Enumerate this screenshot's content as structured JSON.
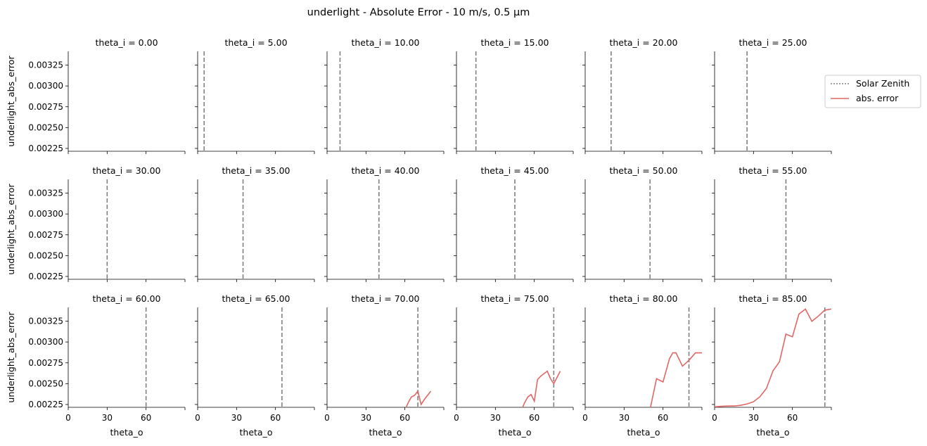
{
  "chart_data": {
    "type": "line",
    "title": "underlight - Absolute Error - 10 m/s, 0.5 µm",
    "xlabel": "theta_o",
    "ylabel": "underlight_abs_error",
    "xlim": [
      0,
      90
    ],
    "ylim": [
      0.002216,
      0.003415
    ],
    "xticks": [
      "0",
      "30",
      "60"
    ],
    "yticks": [
      "0.00225",
      "0.00250",
      "0.00275",
      "0.00300",
      "0.00325"
    ],
    "xtick_values": [
      0,
      30,
      60
    ],
    "ytick_values": [
      0.00225,
      0.0025,
      0.00275,
      0.003,
      0.00325
    ],
    "grid": false,
    "legend": {
      "placement": "right",
      "entries": [
        {
          "label": "Solar Zenith",
          "color": "#808080",
          "style": "dotted"
        },
        {
          "label": "abs. error",
          "color": "#e06666",
          "style": "solid"
        }
      ]
    },
    "panels": [
      {
        "title": "theta_i = 0.00",
        "theta_i": 0,
        "series": []
      },
      {
        "title": "theta_i = 5.00",
        "theta_i": 5,
        "series": []
      },
      {
        "title": "theta_i = 10.00",
        "theta_i": 10,
        "series": []
      },
      {
        "title": "theta_i = 15.00",
        "theta_i": 15,
        "series": []
      },
      {
        "title": "theta_i = 20.00",
        "theta_i": 20,
        "series": []
      },
      {
        "title": "theta_i = 25.00",
        "theta_i": 25,
        "series": []
      },
      {
        "title": "theta_i = 30.00",
        "theta_i": 30,
        "series": []
      },
      {
        "title": "theta_i = 35.00",
        "theta_i": 35,
        "series": []
      },
      {
        "title": "theta_i = 40.00",
        "theta_i": 40,
        "series": []
      },
      {
        "title": "theta_i = 45.00",
        "theta_i": 45,
        "series": []
      },
      {
        "title": "theta_i = 50.00",
        "theta_i": 50,
        "series": []
      },
      {
        "title": "theta_i = 55.00",
        "theta_i": 55,
        "series": []
      },
      {
        "title": "theta_i = 60.00",
        "theta_i": 60,
        "series": []
      },
      {
        "title": "theta_i = 65.00",
        "theta_i": 65,
        "series": []
      },
      {
        "title": "theta_i = 70.00",
        "theta_i": 70,
        "series": [
          {
            "x": [
              60,
              62.5,
              65,
              67.5,
              70,
              72.5,
              75,
              80
            ],
            "y": [
              0.00218,
              0.00227,
              0.00234,
              0.00236,
              0.00241,
              0.00225,
              0.00231,
              0.00241
            ]
          }
        ]
      },
      {
        "title": "theta_i = 75.00",
        "theta_i": 75,
        "series": [
          {
            "x": [
              50,
              52.5,
              55,
              57.5,
              60,
              62.5,
              65,
              67.5,
              70,
              72.5,
              75,
              80
            ],
            "y": [
              0.00218,
              0.00227,
              0.00234,
              0.00237,
              0.00229,
              0.00255,
              0.00259,
              0.00262,
              0.00265,
              0.00256,
              0.0025,
              0.00265
            ]
          }
        ]
      },
      {
        "title": "theta_i = 80.00",
        "theta_i": 80,
        "series": [
          {
            "x": [
              45,
              47.5,
              50,
              55,
              60,
              65,
              67.5,
              70,
              75,
              80,
              85,
              90
            ],
            "y": [
              0.00205,
              0.00212,
              0.00219,
              0.00256,
              0.00252,
              0.0028,
              0.00287,
              0.00287,
              0.00271,
              0.00278,
              0.00287,
              0.00287
            ]
          }
        ]
      },
      {
        "title": "theta_i = 85.00",
        "theta_i": 85,
        "series": [
          {
            "x": [
              0,
              5,
              10,
              15,
              20,
              25,
              30,
              35,
              40,
              45,
              50,
              55,
              60,
              65,
              70,
              75,
              80,
              85,
              90
            ],
            "y": [
              0.002222,
              0.002228,
              0.002231,
              0.002232,
              0.00224,
              0.002256,
              0.002283,
              0.002344,
              0.002444,
              0.002653,
              0.002762,
              0.003095,
              0.003062,
              0.003335,
              0.003395,
              0.003248,
              0.003311,
              0.003383,
              0.003395
            ]
          }
        ]
      }
    ]
  }
}
